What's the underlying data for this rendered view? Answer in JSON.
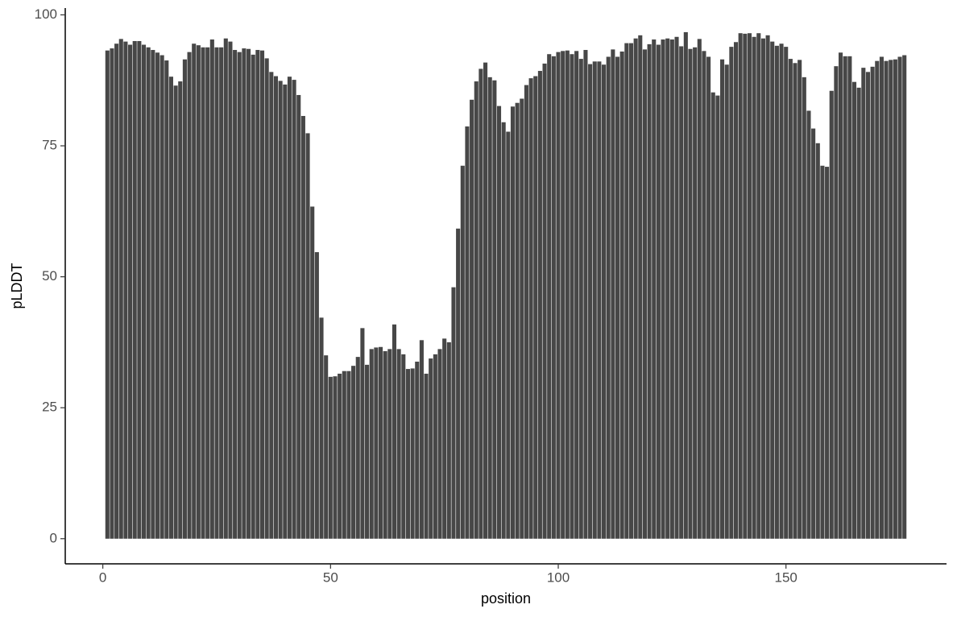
{
  "chart_data": {
    "type": "bar",
    "x_label": "position",
    "y_label": "pLDDT",
    "color": "#474747",
    "x": [
      1,
      2,
      3,
      4,
      5,
      6,
      7,
      8,
      9,
      10,
      11,
      12,
      13,
      14,
      15,
      16,
      17,
      18,
      19,
      20,
      21,
      22,
      23,
      24,
      25,
      26,
      27,
      28,
      29,
      30,
      31,
      32,
      33,
      34,
      35,
      36,
      37,
      38,
      39,
      40,
      41,
      42,
      43,
      44,
      45,
      46,
      47,
      48,
      49,
      50,
      51,
      52,
      53,
      54,
      55,
      56,
      57,
      58,
      59,
      60,
      61,
      62,
      63,
      64,
      65,
      66,
      67,
      68,
      69,
      70,
      71,
      72,
      73,
      74,
      75,
      76,
      77,
      78,
      79,
      80,
      81,
      82,
      83,
      84,
      85,
      86,
      87,
      88,
      89,
      90,
      91,
      92,
      93,
      94,
      95,
      96,
      97,
      98,
      99,
      100,
      101,
      102,
      103,
      104,
      105,
      106,
      107,
      108,
      109,
      110,
      111,
      112,
      113,
      114,
      115,
      116,
      117,
      118,
      119,
      120,
      121,
      122,
      123,
      124,
      125,
      126,
      127,
      128,
      129,
      130,
      131,
      132,
      133,
      134,
      135,
      136,
      137,
      138,
      139,
      140,
      141,
      142,
      143,
      144,
      145,
      146,
      147,
      148,
      149,
      150,
      151,
      152,
      153,
      154,
      155,
      156,
      157,
      158,
      159,
      160,
      161,
      162,
      163,
      164,
      165,
      166,
      167,
      168,
      169,
      170,
      171,
      172,
      173,
      174,
      175,
      176
    ],
    "values": [
      93.2,
      93.6,
      94.5,
      95.4,
      94.9,
      94.3,
      95,
      95,
      94.3,
      93.8,
      93.3,
      92.8,
      92.3,
      91.3,
      88.2,
      86.5,
      87.3,
      91.5,
      92.9,
      94.5,
      94.2,
      93.8,
      93.8,
      95.3,
      93.8,
      93.8,
      95.5,
      94.9,
      93.3,
      92.9,
      93.6,
      93.5,
      92.4,
      93.3,
      93.2,
      91.7,
      89.1,
      88.3,
      87.4,
      86.7,
      88.2,
      87.6,
      84.7,
      80.7,
      77.4,
      63.4,
      54.7,
      42.2,
      35,
      30.9,
      31,
      31.5,
      32,
      32,
      33,
      34.7,
      40.2,
      33.2,
      36.2,
      36.5,
      36.6,
      35.8,
      36.2,
      40.9,
      36.2,
      35.2,
      32.4,
      32.5,
      33.8,
      37.9,
      31.5,
      34.4,
      35.2,
      36.2,
      38.2,
      37.5,
      48,
      59.2,
      71.2,
      78.7,
      83.8,
      87.3,
      89.7,
      90.9,
      88.1,
      87.5,
      82.6,
      79.5,
      77.7,
      82.5,
      83.2,
      84,
      86.6,
      87.9,
      88.3,
      89.3,
      90.7,
      92.5,
      92.1,
      92.9,
      93.1,
      93.2,
      92.5,
      93.1,
      91.6,
      93.3,
      90.6,
      91.1,
      91.1,
      90.5,
      92,
      93.4,
      92,
      93,
      94.6,
      94.6,
      95.5,
      96.1,
      93.4,
      94.4,
      95.3,
      94.3,
      95.3,
      95.5,
      95.3,
      95.8,
      94,
      96.7,
      93.5,
      93.8,
      95.4,
      93.1,
      92,
      85.2,
      84.6,
      91.5,
      90.5,
      93.9,
      94.8,
      96.5,
      96.4,
      96.5,
      95.8,
      96.5,
      95.5,
      96.1,
      94.9,
      94.1,
      94.5,
      93.9,
      91.6,
      90.8,
      91.4,
      88.1,
      81.7,
      78.3,
      75.5,
      71.2,
      71,
      85.5,
      90.2,
      92.8,
      92.1,
      92.1,
      87.2,
      86.1,
      89.9,
      89.1,
      90.1,
      91.2,
      92,
      91.2,
      91.4,
      91.5,
      92,
      92.3
    ],
    "xlim": [
      -8.25,
      185.25
    ],
    "xticks": [
      0,
      50,
      100,
      150
    ],
    "ylim": [
      -4.8,
      101.3
    ],
    "yticks": [
      0,
      25,
      50,
      75,
      100
    ]
  }
}
